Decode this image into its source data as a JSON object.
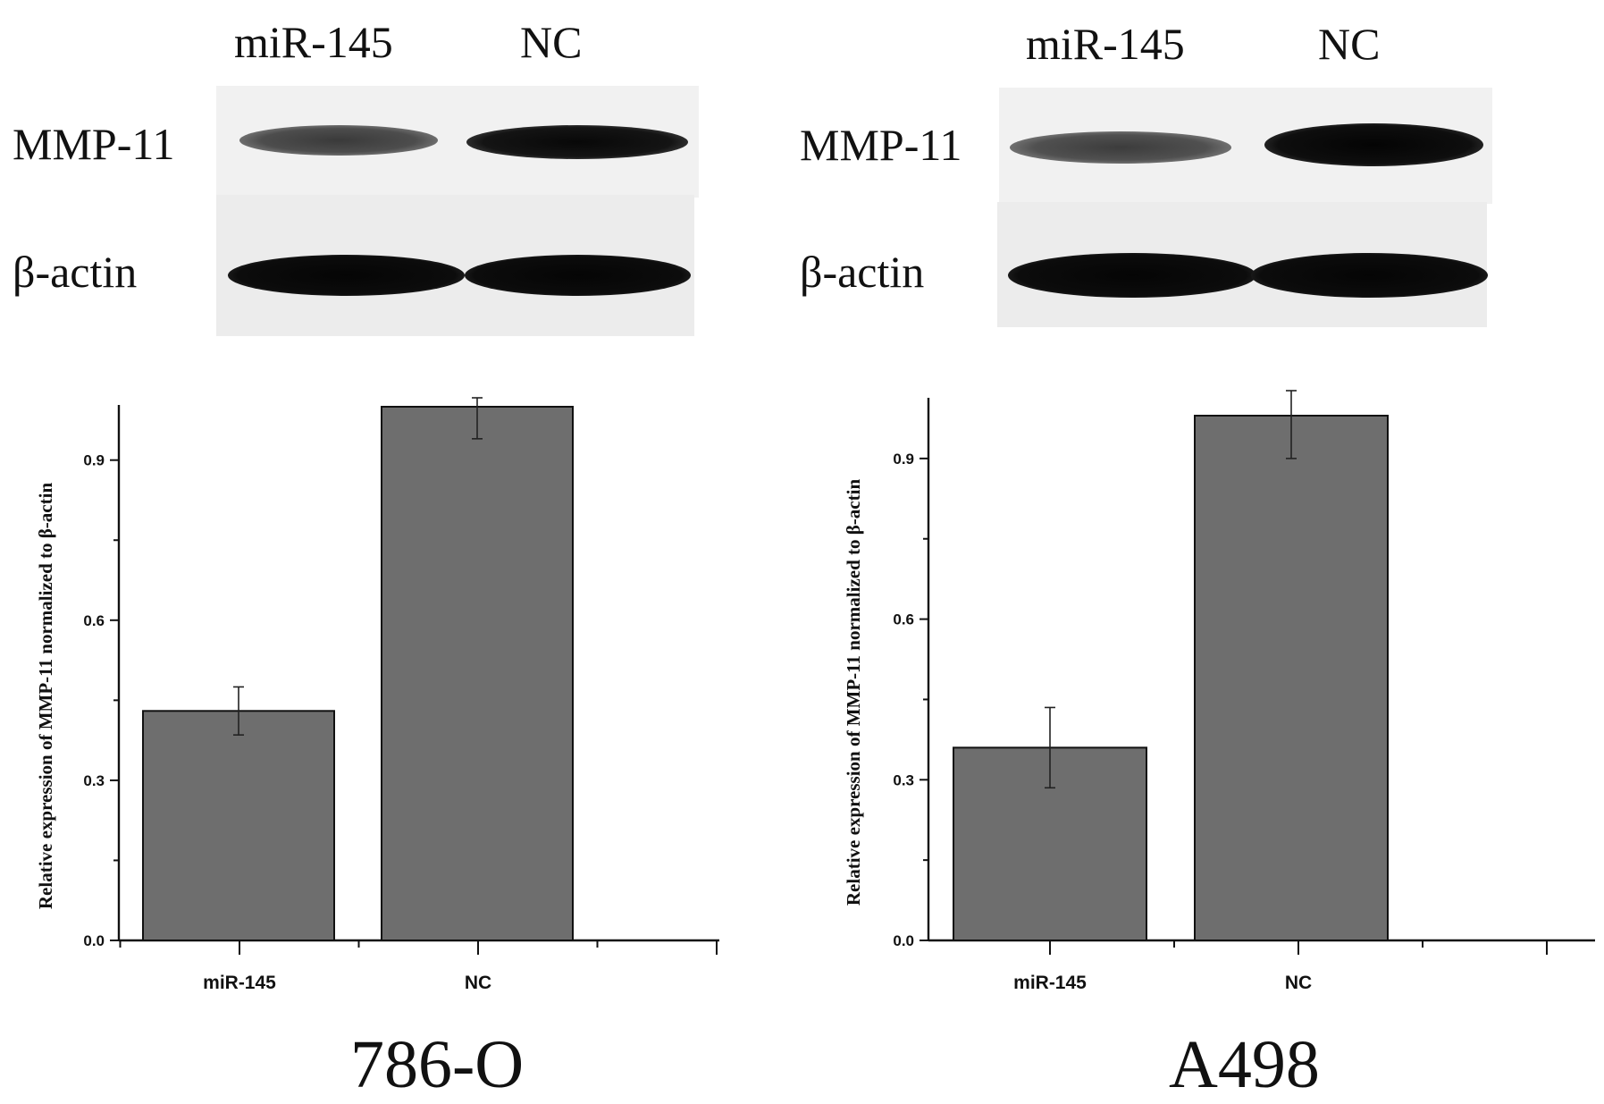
{
  "panels": [
    {
      "cell_line": "786-O",
      "blot": {
        "lanes": [
          "miR-145",
          "NC"
        ],
        "proteins": [
          "MMP-11",
          "β-actin"
        ],
        "band_intensity": {
          "MMP-11": [
            0.65,
            0.9
          ],
          "β-actin": [
            1.0,
            1.0
          ]
        }
      }
    },
    {
      "cell_line": "A498",
      "blot": {
        "lanes": [
          "miR-145",
          "NC"
        ],
        "proteins": [
          "MMP-11",
          "β-actin"
        ],
        "band_intensity": {
          "MMP-11": [
            0.6,
            0.95
          ],
          "β-actin": [
            1.0,
            1.0
          ]
        }
      }
    }
  ],
  "chart_data": [
    {
      "type": "bar",
      "categories": [
        "miR-145",
        "NC"
      ],
      "values": [
        0.43,
        1.0
      ],
      "errors": [
        0.045,
        0.06
      ],
      "ylabel": "Relative expression of MMP-11 normalized to β-actin",
      "yticks": [
        "0.0",
        "0.3",
        "0.6",
        "0.9"
      ],
      "ylim": [
        0,
        1.0
      ],
      "bar_color": "#6e6e6e"
    },
    {
      "type": "bar",
      "categories": [
        "miR-145",
        "NC"
      ],
      "values": [
        0.36,
        0.98
      ],
      "errors": [
        0.075,
        0.08
      ],
      "ylabel": "Relative expression of MMP-11 normalized to β-actin",
      "yticks": [
        "0.0",
        "0.3",
        "0.6",
        "0.9"
      ],
      "ylim": [
        0,
        1.01
      ],
      "bar_color": "#6e6e6e"
    }
  ]
}
